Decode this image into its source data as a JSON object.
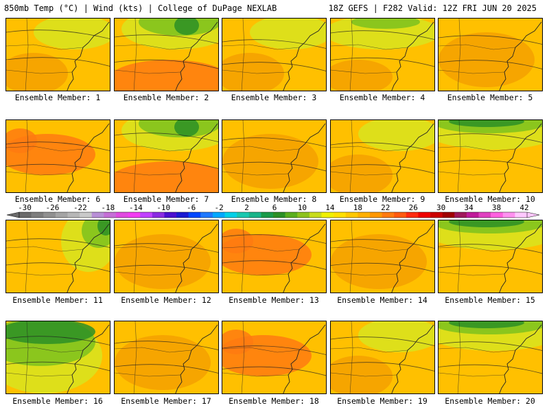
{
  "header": {
    "left": "850mb Temp (°C) | Wind (kts) | College of DuPage NEXLAB",
    "right": "18Z GEFS | F282 Valid: 12Z FRI JUN 20 2025"
  },
  "colors": {
    "cool": "#d8e41e",
    "warm": "#ffc000",
    "hot": "#f5a000",
    "very_hot": "#ff7a10",
    "green": "#7cc21e",
    "dark_green": "#2b8f26",
    "contour": "#222222"
  },
  "panels": [
    {
      "label": "Ensemble Member: 1",
      "scheme": "yellow-orange"
    },
    {
      "label": "Ensemble Member: 2",
      "scheme": "green-north-red-south"
    },
    {
      "label": "Ensemble Member: 3",
      "scheme": "yellow-orange"
    },
    {
      "label": "Ensemble Member: 4",
      "scheme": "yellow-green"
    },
    {
      "label": "Ensemble Member: 5",
      "scheme": "orange"
    },
    {
      "label": "Ensemble Member: 6",
      "scheme": "orange-red"
    },
    {
      "label": "Ensemble Member: 7",
      "scheme": "green-north-red-south"
    },
    {
      "label": "Ensemble Member: 8",
      "scheme": "orange"
    },
    {
      "label": "Ensemble Member: 9",
      "scheme": "yellow-orange"
    },
    {
      "label": "Ensemble Member: 10",
      "scheme": "green-north"
    },
    {
      "label": "Ensemble Member: 11",
      "scheme": "green-east"
    },
    {
      "label": "Ensemble Member: 12",
      "scheme": "orange"
    },
    {
      "label": "Ensemble Member: 13",
      "scheme": "orange-red"
    },
    {
      "label": "Ensemble Member: 14",
      "scheme": "orange"
    },
    {
      "label": "Ensemble Member: 15",
      "scheme": "green-north"
    },
    {
      "label": "Ensemble Member: 16",
      "scheme": "green-heavy"
    },
    {
      "label": "Ensemble Member: 17",
      "scheme": "orange"
    },
    {
      "label": "Ensemble Member: 18",
      "scheme": "orange-red"
    },
    {
      "label": "Ensemble Member: 19",
      "scheme": "yellow-orange"
    },
    {
      "label": "Ensemble Member: 20",
      "scheme": "green-north"
    }
  ],
  "colorbar": {
    "ticks": [
      "-30",
      "-26",
      "-22",
      "-18",
      "-14",
      "-10",
      "-6",
      "-2",
      "2",
      "6",
      "10",
      "14",
      "18",
      "22",
      "26",
      "30",
      "34",
      "38",
      "42"
    ],
    "colors": [
      "#6a6a6a",
      "#7d7d7d",
      "#909090",
      "#a4a4a4",
      "#b7b7b7",
      "#c9c9c9",
      "#b98fd6",
      "#c56ed6",
      "#e04ae0",
      "#f23cf2",
      "#c040ff",
      "#8a2be2",
      "#4b0fd0",
      "#1a1ad2",
      "#0047ff",
      "#1e78ff",
      "#00a8ff",
      "#00d0e8",
      "#18c8b0",
      "#1ab48a",
      "#1a9a4a",
      "#2b8f26",
      "#5aae1e",
      "#8cc21e",
      "#c8dc1e",
      "#f0f000",
      "#ffe000",
      "#ffc800",
      "#ffb000",
      "#ff9800",
      "#ff7a10",
      "#ff5a10",
      "#ff2a10",
      "#ef0000",
      "#cc0000",
      "#a00000",
      "#a0185a",
      "#c01a9a",
      "#e040c0",
      "#ff60e0",
      "#ff90f0",
      "#ffc8ff"
    ]
  }
}
